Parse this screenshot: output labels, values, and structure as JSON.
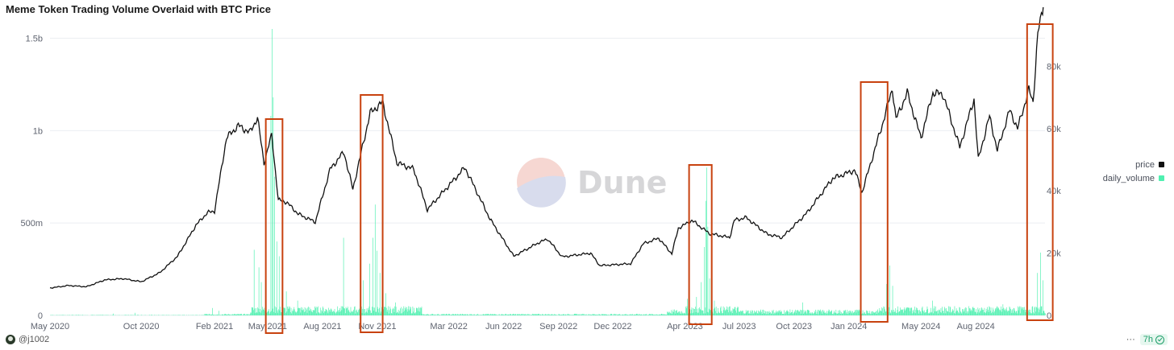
{
  "header": {
    "title": "Meme Token Trading Volume Overlaid with BTC Price"
  },
  "watermark": {
    "text": "Dune"
  },
  "footer": {
    "author": "@j1002",
    "more": "···",
    "age": "7h"
  },
  "colors": {
    "price": "#111111",
    "volume": "#4ff0b0",
    "highlight": "#c8420f",
    "grid": "#eceef2"
  },
  "chart_data": {
    "type": "line+bar",
    "title": "Meme Token Trading Volume Overlaid with BTC Price",
    "x_tick_labels": [
      "May 2020",
      "Oct 2020",
      "Feb 2021",
      "May 2021",
      "Aug 2021",
      "Nov 2021",
      "Mar 2022",
      "Jun 2022",
      "Sep 2022",
      "Dec 2022",
      "Apr 2023",
      "Jul 2023",
      "Oct 2023",
      "Jan 2024",
      "May 2024",
      "Aug 2024"
    ],
    "x_range": [
      "2020-05-01",
      "2024-11-25"
    ],
    "left_axis": {
      "ticks": [
        0,
        500000000,
        1000000000,
        1500000000
      ],
      "tick_labels": [
        "0",
        "500m",
        "1b",
        "1.5b"
      ],
      "ylim": [
        0,
        1550000000
      ]
    },
    "right_axis": {
      "ticks": [
        0,
        20000,
        40000,
        60000,
        80000
      ],
      "tick_labels": [
        "0",
        "20k",
        "40k",
        "60k",
        "80k"
      ],
      "ylim": [
        0,
        92000
      ]
    },
    "legend": {
      "placement": "right",
      "entries": [
        "price",
        "daily_volume"
      ]
    },
    "series": [
      {
        "name": "price",
        "axis": "right",
        "kind": "line",
        "points": [
          [
            "2020-05-01",
            8800
          ],
          [
            "2020-06-01",
            9600
          ],
          [
            "2020-07-01",
            9200
          ],
          [
            "2020-08-01",
            11400
          ],
          [
            "2020-09-01",
            11800
          ],
          [
            "2020-10-01",
            10800
          ],
          [
            "2020-11-01",
            13700
          ],
          [
            "2020-12-01",
            19000
          ],
          [
            "2021-01-01",
            29000
          ],
          [
            "2021-01-20",
            33000
          ],
          [
            "2021-02-01",
            33500
          ],
          [
            "2021-02-21",
            57000
          ],
          [
            "2021-03-13",
            61000
          ],
          [
            "2021-04-01",
            58700
          ],
          [
            "2021-04-14",
            63500
          ],
          [
            "2021-04-25",
            49000
          ],
          [
            "2021-05-08",
            58000
          ],
          [
            "2021-05-19",
            37000
          ],
          [
            "2021-06-01",
            36500
          ],
          [
            "2021-06-22",
            32500
          ],
          [
            "2021-07-20",
            30000
          ],
          [
            "2021-08-14",
            47000
          ],
          [
            "2021-09-06",
            52500
          ],
          [
            "2021-09-21",
            40500
          ],
          [
            "2021-10-20",
            65000
          ],
          [
            "2021-11-10",
            68500
          ],
          [
            "2021-12-04",
            49000
          ],
          [
            "2022-01-01",
            47000
          ],
          [
            "2022-01-24",
            34000
          ],
          [
            "2022-03-28",
            47500
          ],
          [
            "2022-05-09",
            31000
          ],
          [
            "2022-06-18",
            19000
          ],
          [
            "2022-07-31",
            23500
          ],
          [
            "2022-08-14",
            24500
          ],
          [
            "2022-09-07",
            18800
          ],
          [
            "2022-10-25",
            20000
          ],
          [
            "2022-11-09",
            16000
          ],
          [
            "2022-12-31",
            16600
          ],
          [
            "2023-01-21",
            23000
          ],
          [
            "2023-02-16",
            24800
          ],
          [
            "2023-03-10",
            19800
          ],
          [
            "2023-03-21",
            28000
          ],
          [
            "2023-04-13",
            30500
          ],
          [
            "2023-05-12",
            26300
          ],
          [
            "2023-06-15",
            25000
          ],
          [
            "2023-06-23",
            30600
          ],
          [
            "2023-07-13",
            31400
          ],
          [
            "2023-08-17",
            26100
          ],
          [
            "2023-09-11",
            25000
          ],
          [
            "2023-10-23",
            33000
          ],
          [
            "2023-12-05",
            44000
          ],
          [
            "2024-01-11",
            46600
          ],
          [
            "2024-01-23",
            39500
          ],
          [
            "2024-02-28",
            62500
          ],
          [
            "2024-03-14",
            73000
          ],
          [
            "2024-03-20",
            63000
          ],
          [
            "2024-04-08",
            71500
          ],
          [
            "2024-05-01",
            57000
          ],
          [
            "2024-05-21",
            71500
          ],
          [
            "2024-06-07",
            71000
          ],
          [
            "2024-07-05",
            54000
          ],
          [
            "2024-07-29",
            69500
          ],
          [
            "2024-08-05",
            50000
          ],
          [
            "2024-08-24",
            64000
          ],
          [
            "2024-09-06",
            53000
          ],
          [
            "2024-09-27",
            66000
          ],
          [
            "2024-10-10",
            60000
          ],
          [
            "2024-10-29",
            72500
          ],
          [
            "2024-11-05",
            68500
          ],
          [
            "2024-11-13",
            90500
          ],
          [
            "2024-11-22",
            99000
          ]
        ]
      },
      {
        "name": "daily_volume",
        "axis": "left",
        "kind": "bar",
        "baseline": 12000000,
        "spikes": [
          [
            "2020-08-15",
            10000000
          ],
          [
            "2020-09-20",
            14000000
          ],
          [
            "2021-01-28",
            40000000
          ],
          [
            "2021-02-08",
            25000000
          ],
          [
            "2021-04-08",
            355000000
          ],
          [
            "2021-04-16",
            260000000
          ],
          [
            "2021-04-20",
            180000000
          ],
          [
            "2021-05-06",
            1080000000
          ],
          [
            "2021-05-08",
            1550000000
          ],
          [
            "2021-05-10",
            1180000000
          ],
          [
            "2021-05-12",
            750000000
          ],
          [
            "2021-05-16",
            400000000
          ],
          [
            "2021-05-20",
            320000000
          ],
          [
            "2021-06-01",
            130000000
          ],
          [
            "2021-06-20",
            80000000
          ],
          [
            "2021-09-05",
            420000000
          ],
          [
            "2021-10-08",
            190000000
          ],
          [
            "2021-10-19",
            280000000
          ],
          [
            "2021-10-24",
            420000000
          ],
          [
            "2021-10-28",
            600000000
          ],
          [
            "2021-10-31",
            350000000
          ],
          [
            "2021-11-05",
            230000000
          ],
          [
            "2021-11-15",
            120000000
          ],
          [
            "2021-12-01",
            70000000
          ],
          [
            "2023-04-05",
            90000000
          ],
          [
            "2023-04-20",
            100000000
          ],
          [
            "2023-04-28",
            180000000
          ],
          [
            "2023-05-03",
            370000000
          ],
          [
            "2023-05-06",
            620000000
          ],
          [
            "2023-05-07",
            800000000
          ],
          [
            "2023-05-09",
            480000000
          ],
          [
            "2023-05-12",
            200000000
          ],
          [
            "2023-05-20",
            80000000
          ],
          [
            "2023-10-15",
            70000000
          ],
          [
            "2024-03-04",
            170000000
          ],
          [
            "2024-03-06",
            190000000
          ],
          [
            "2024-03-09",
            270000000
          ],
          [
            "2024-03-14",
            160000000
          ],
          [
            "2024-05-20",
            80000000
          ],
          [
            "2024-09-15",
            60000000
          ],
          [
            "2024-11-12",
            230000000
          ],
          [
            "2024-11-17",
            340000000
          ],
          [
            "2024-11-21",
            190000000
          ]
        ]
      }
    ]
  }
}
